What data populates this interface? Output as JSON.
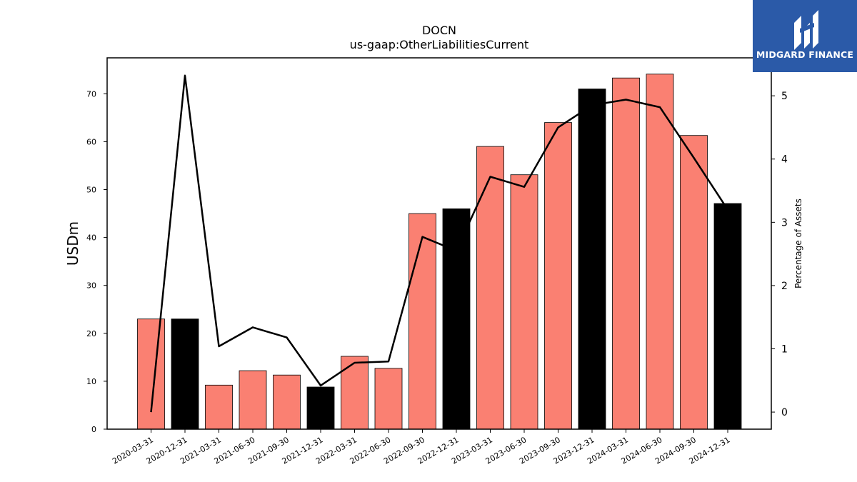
{
  "chart_data": {
    "type": "bar",
    "title": "DOCN",
    "subtitle": "us-gaap:OtherLiabilitiesCurrent",
    "ylabel": "USDm",
    "y2label": "Percentage of Assets",
    "ylim": [
      0,
      77.5
    ],
    "y2lim": [
      -0.27,
      5.6
    ],
    "yticks": [
      0,
      10,
      20,
      30,
      40,
      50,
      60,
      70
    ],
    "y2ticks": [
      0,
      1,
      2,
      3,
      4,
      5
    ],
    "categories": [
      "2020-03-31",
      "2020-12-31",
      "2021-03-31",
      "2021-06-30",
      "2021-09-30",
      "2021-12-31",
      "2022-03-31",
      "2022-06-30",
      "2022-09-30",
      "2022-12-31",
      "2023-03-31",
      "2023-06-30",
      "2023-09-30",
      "2023-12-31",
      "2024-03-31",
      "2024-06-30",
      "2024-09-30",
      "2024-12-31"
    ],
    "series": [
      {
        "type": "bar",
        "values": [
          23,
          23,
          9.2,
          12.2,
          11.3,
          8.8,
          15.2,
          12.7,
          45,
          46,
          59,
          53.1,
          64,
          71,
          73.3,
          74.1,
          61.3,
          47.1
        ],
        "colors": [
          "#fa8072",
          "#000000",
          "#fa8072",
          "#fa8072",
          "#fa8072",
          "#000000",
          "#fa8072",
          "#fa8072",
          "#fa8072",
          "#000000",
          "#fa8072",
          "#fa8072",
          "#fa8072",
          "#000000",
          "#fa8072",
          "#fa8072",
          "#fa8072",
          "#000000"
        ]
      },
      {
        "type": "line",
        "axis": "right",
        "color": "#000000",
        "values": [
          0,
          5.32,
          1.04,
          1.34,
          1.18,
          0.42,
          0.78,
          0.8,
          2.77,
          2.55,
          3.72,
          3.56,
          4.5,
          4.85,
          4.94,
          4.82,
          4.02,
          3.2
        ]
      }
    ]
  },
  "logo": {
    "text": "MIDGARD FINANCE",
    "color": "#2b5aa8"
  }
}
